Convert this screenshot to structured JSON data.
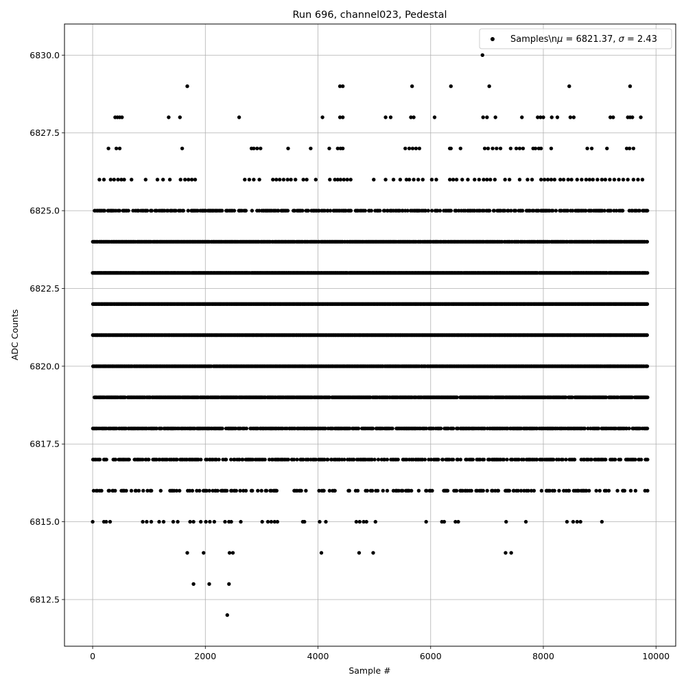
{
  "chart_data": {
    "type": "scatter",
    "title": "Run 696, channel023, Pedestal",
    "xlabel": "Sample #",
    "ylabel": "ADC Counts",
    "xlim": [
      -500,
      10350
    ],
    "ylim": [
      6811.0,
      6831.0
    ],
    "x_ticks": [
      0,
      2000,
      4000,
      6000,
      8000,
      10000
    ],
    "y_ticks": [
      6812.5,
      6815.0,
      6817.5,
      6820.0,
      6822.5,
      6825.0,
      6827.5,
      6830.0
    ],
    "x_tick_labels": [
      "0",
      "2000",
      "4000",
      "6000",
      "8000",
      "10000"
    ],
    "y_tick_labels": [
      "6812.5",
      "6815.0",
      "6817.5",
      "6820.0",
      "6822.5",
      "6825.0",
      "6827.5",
      "6830.0"
    ],
    "grid": true,
    "legend": {
      "position": "top-right",
      "label_prefix": "Samples\\n",
      "label_mu": "μ",
      "label_mid": " = 6821.37, ",
      "label_sigma": "σ",
      "label_suffix": " = 2.43"
    },
    "marker_color": "#000000",
    "series": [
      {
        "values_by_level": [
          {
            "y": 6830,
            "x": [
              6920
            ]
          },
          {
            "y": 6829,
            "x": [
              1680,
              4390,
              4440,
              5670,
              6360,
              7040,
              8460,
              9540
            ]
          },
          {
            "y": 6828,
            "x": [
              400,
              440,
              480,
              520,
              1350,
              1550,
              2600,
              4080,
              4390,
              4440,
              5200,
              5290,
              5650,
              5700,
              6070,
              6930,
              7000,
              7150,
              7620,
              7900,
              7950,
              8000,
              8150,
              8250,
              8480,
              8540,
              9190,
              9240,
              9500,
              9540,
              9580,
              9730
            ]
          },
          {
            "y": 6827,
            "x": [
              280,
              420,
              480,
              1590,
              2820,
              2860,
              2920,
              2980,
              3470,
              3870,
              4200,
              4350,
              4400,
              4440,
              5550,
              5620,
              5680,
              5740,
              5800,
              6340,
              6360,
              6530,
              6960,
              7020,
              7100,
              7170,
              7240,
              7420,
              7520,
              7580,
              7640,
              7820,
              7860,
              7920,
              7960,
              8140,
              8780,
              8860,
              9130,
              9480,
              9530,
              9600
            ]
          },
          {
            "y": 6826,
            "x": [
              120,
              200,
              320,
              380,
              450,
              510,
              560,
              690,
              940,
              1150,
              1250,
              1370,
              1560,
              1640,
              1700,
              1760,
              1820,
              2700,
              2780,
              2860,
              2960,
              3200,
              3260,
              3320,
              3390,
              3460,
              3520,
              3600,
              3740,
              3800,
              3960,
              4210,
              4300,
              4350,
              4400,
              4460,
              4520,
              4580,
              4990,
              5200,
              5340,
              5460,
              5570,
              5620,
              5700,
              5780,
              5860,
              6020,
              6100,
              6340,
              6400,
              6460,
              6560,
              6660,
              6780,
              6860,
              6940,
              7000,
              7060,
              7140,
              7320,
              7400,
              7580,
              7720,
              7800,
              7960,
              8020,
              8080,
              8140,
              8200,
              8300,
              8360,
              8440,
              8500,
              8600,
              8680,
              8760,
              8820,
              8880,
              8960,
              9040,
              9100,
              9180,
              9260,
              9340,
              9420,
              9500,
              9600,
              9680,
              9760
            ]
          },
          {
            "y": 6815,
            "x": [
              0,
              200,
              240,
              310,
              890,
              960,
              1040,
              1180,
              1260,
              1430,
              1510,
              1730,
              1790,
              1920,
              2010,
              2080,
              2160,
              2350,
              2420,
              2460,
              2630,
              3010,
              3110,
              3170,
              3230,
              3280,
              3730,
              3760,
              4030,
              4140,
              4680,
              4740,
              4810,
              4860,
              5020,
              5920,
              6200,
              6240,
              6440,
              6490,
              7340,
              7690,
              8420,
              8530,
              8600,
              8660,
              9040
            ]
          },
          {
            "y": 6814,
            "x": [
              1680,
              1970,
              2430,
              2490,
              4060,
              4730,
              4980,
              7330,
              7430
            ]
          },
          {
            "y": 6813,
            "x": [
              1790,
              2070,
              2420
            ]
          },
          {
            "y": 6812,
            "x": [
              2390
            ]
          }
        ],
        "bands": [
          {
            "y": 6825,
            "x_start": 0,
            "x_end": 9850,
            "density": 0.55
          },
          {
            "y": 6824,
            "x_start": 0,
            "x_end": 9850,
            "density": 0.92
          },
          {
            "y": 6823,
            "x_start": 0,
            "x_end": 9850,
            "density": 0.98
          },
          {
            "y": 6822,
            "x_start": 0,
            "x_end": 9850,
            "density": 1.0
          },
          {
            "y": 6821,
            "x_start": 0,
            "x_end": 9850,
            "density": 1.0
          },
          {
            "y": 6820,
            "x_start": 0,
            "x_end": 9850,
            "density": 0.98
          },
          {
            "y": 6819,
            "x_start": 0,
            "x_end": 9850,
            "density": 0.9
          },
          {
            "y": 6818,
            "x_start": 0,
            "x_end": 9850,
            "density": 0.7
          },
          {
            "y": 6817,
            "x_start": 0,
            "x_end": 9850,
            "density": 0.5
          },
          {
            "y": 6816,
            "x_start": 0,
            "x_end": 9850,
            "density": 0.28
          }
        ]
      }
    ]
  }
}
